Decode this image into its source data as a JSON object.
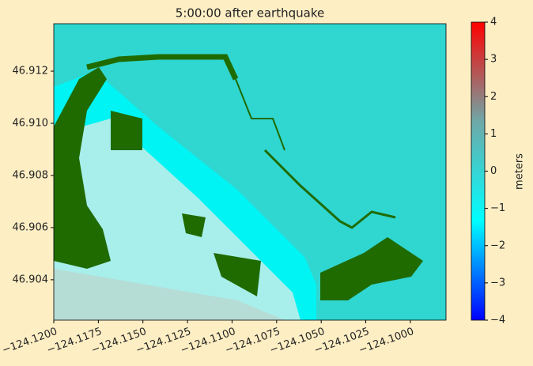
{
  "chart_data": {
    "type": "heatmap",
    "title": "5:00:00 after earthquake",
    "xlim": [
      -124.12,
      -124.098
    ],
    "ylim": [
      46.90245,
      46.91382
    ],
    "xticks": [
      {
        "value": -124.12,
        "label": "−124.1200"
      },
      {
        "value": -124.1175,
        "label": "−124.1175"
      },
      {
        "value": -124.115,
        "label": "−124.1150"
      },
      {
        "value": -124.1125,
        "label": "−124.1125"
      },
      {
        "value": -124.11,
        "label": "−124.1100"
      },
      {
        "value": -124.1075,
        "label": "−124.1075"
      },
      {
        "value": -124.105,
        "label": "−124.1050"
      },
      {
        "value": -124.1025,
        "label": "−124.1025"
      },
      {
        "value": -124.1,
        "label": "−124.1000"
      }
    ],
    "yticks": [
      46.904,
      46.906,
      46.908,
      {
        "value": 46.91,
        "label": "46.910"
      },
      46.912
    ],
    "colorbar": {
      "label": "meters",
      "lim": [
        -4,
        4
      ],
      "ticks": [
        {
          "value": -4,
          "label": "−4"
        },
        {
          "value": -3,
          "label": "−3"
        },
        {
          "value": -2,
          "label": "−2"
        },
        {
          "value": -1,
          "label": "−1"
        },
        0,
        1,
        2,
        3,
        4
      ],
      "colors": [
        "#0000ff",
        "#00ffff",
        "#6fa8a8",
        "#ff0000"
      ]
    }
  }
}
